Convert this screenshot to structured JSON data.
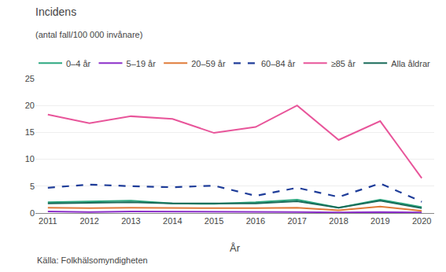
{
  "chart_data": {
    "type": "line",
    "title": "Incidens",
    "subtitle": "(antal fall/100 000 invånare)",
    "x_label": "År",
    "annotations": [
      "Källa: Folkhälsomyndigheten"
    ],
    "x": [
      2011,
      2012,
      2013,
      2014,
      2015,
      2016,
      2017,
      2018,
      2019,
      2020
    ],
    "series": [
      {
        "name": "0–4 år",
        "color": "#2ca87f",
        "line_style": "solid",
        "values": [
          2.0,
          2.2,
          2.3,
          1.8,
          1.7,
          2.0,
          2.5,
          1.0,
          2.5,
          1.1
        ]
      },
      {
        "name": "5–19 år",
        "color": "#8b2fc9",
        "line_style": "solid",
        "values": [
          0.3,
          0.2,
          0.3,
          0.3,
          0.2,
          0.2,
          0.2,
          0.1,
          0.2,
          0.1
        ]
      },
      {
        "name": "20–59 år",
        "color": "#e07b39",
        "line_style": "solid",
        "values": [
          1.0,
          0.9,
          1.0,
          0.9,
          0.9,
          0.9,
          1.0,
          0.5,
          1.2,
          0.4
        ]
      },
      {
        "name": "60–84 år",
        "color": "#1f3d99",
        "line_style": "dashed",
        "values": [
          4.7,
          5.3,
          5.0,
          4.8,
          5.1,
          3.2,
          4.7,
          3.0,
          5.5,
          2.1
        ]
      },
      {
        "name": "≥85 år",
        "color": "#e8559a",
        "line_style": "solid",
        "values": [
          18.3,
          16.7,
          18.0,
          17.5,
          14.9,
          16.0,
          20.0,
          13.6,
          17.1,
          6.5
        ]
      },
      {
        "name": "Alla åldrar",
        "color": "#1a6b5a",
        "line_style": "solid",
        "values": [
          1.8,
          1.9,
          2.0,
          1.8,
          1.8,
          1.8,
          2.2,
          1.0,
          2.3,
          0.9
        ]
      }
    ],
    "xlim": [
      2010.7,
      2020.3
    ],
    "xticks": [
      2011,
      2012,
      2013,
      2014,
      2015,
      2016,
      2017,
      2018,
      2019,
      2020
    ],
    "ylim": [
      0,
      25
    ],
    "yticks": [
      0,
      5,
      10,
      15,
      20,
      25
    ],
    "grid": true,
    "legend": "top"
  }
}
